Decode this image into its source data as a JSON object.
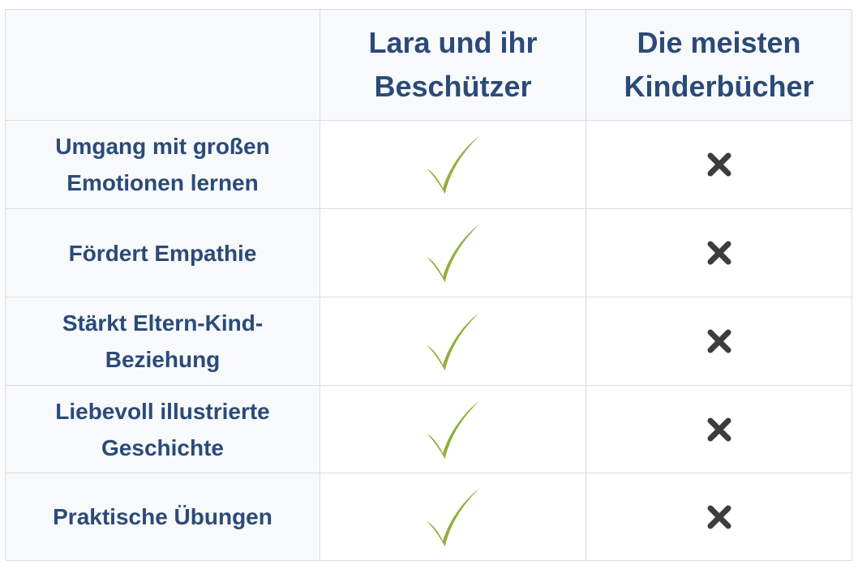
{
  "columns": {
    "corner": "",
    "product": "Lara und ihr Beschützer",
    "others": "Die meisten Kinderbücher"
  },
  "rows": [
    {
      "feature": "Umgang mit großen Emotionen lernen",
      "product": "check-icon",
      "others": "cross-icon"
    },
    {
      "feature": "Fördert Empathie",
      "product": "check-icon",
      "others": "cross-icon"
    },
    {
      "feature": "Stärkt Eltern-Kind-Beziehung",
      "product": "check-icon",
      "others": "cross-icon"
    },
    {
      "feature": "Liebevoll illustrierte Geschichte",
      "product": "check-icon",
      "others": "cross-icon"
    },
    {
      "feature": "Praktische Übungen",
      "product": "check-icon",
      "others": "cross-icon"
    }
  ],
  "colors": {
    "heading_text": "#2b4a78",
    "check": "#8fb03e",
    "cross": "#3d3d3d",
    "grid": "#dcdcdc",
    "shaded_bg": "#f7f9fb"
  }
}
